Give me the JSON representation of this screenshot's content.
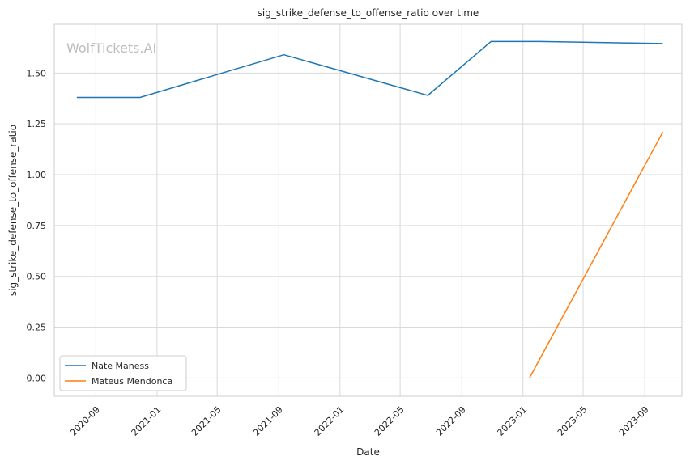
{
  "chart_data": {
    "type": "line",
    "title": "sig_strike_defense_to_offense_ratio over time",
    "xlabel": "Date",
    "ylabel": "sig_strike_defense_to_offense_ratio",
    "watermark": "WolfTickets.AI",
    "xlim": [
      "2020-06-10",
      "2023-11-14"
    ],
    "ylim": [
      -0.09,
      1.74
    ],
    "x_ticks": [
      "2020-09",
      "2021-01",
      "2021-05",
      "2021-09",
      "2022-01",
      "2022-05",
      "2022-09",
      "2023-01",
      "2023-05",
      "2023-09"
    ],
    "y_ticks": [
      0.0,
      0.25,
      0.5,
      0.75,
      1.0,
      1.25,
      1.5
    ],
    "y_tick_labels": [
      "0.00",
      "0.25",
      "0.50",
      "0.75",
      "1.00",
      "1.25",
      "1.50"
    ],
    "grid": true,
    "legend_position": "bottom-left",
    "series": [
      {
        "name": "Nate Maness",
        "color": "#1f77b4",
        "x": [
          "2020-07-25",
          "2020-11-28",
          "2021-09-11",
          "2022-06-25",
          "2022-10-29",
          "2023-02-04",
          "2023-10-07"
        ],
        "y": [
          1.38,
          1.38,
          1.59,
          1.39,
          1.655,
          1.655,
          1.645
        ]
      },
      {
        "name": "Mateus Mendonca",
        "color": "#ff7f0e",
        "x": [
          "2023-01-14",
          "2023-10-07"
        ],
        "y": [
          0.0,
          1.21
        ]
      }
    ]
  }
}
